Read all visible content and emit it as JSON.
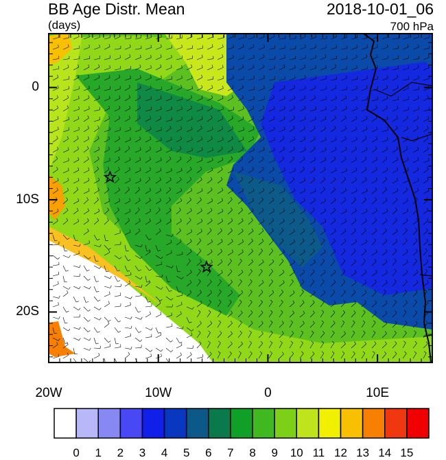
{
  "title": "BB Age Distr. Mean",
  "units": "(days)",
  "datetime": "2018-10-01_06",
  "level": "700 hPa",
  "x_ticks": [
    {
      "label": "20W",
      "lon": -20
    },
    {
      "label": "10W",
      "lon": -10
    },
    {
      "label": "0",
      "lon": 0
    },
    {
      "label": "10E",
      "lon": 10
    }
  ],
  "y_ticks": [
    {
      "label": "0",
      "lat": 0
    },
    {
      "label": "10S",
      "lat": -10
    },
    {
      "label": "20S",
      "lat": -20
    }
  ],
  "domain": {
    "lon_min": -20,
    "lon_max": 15,
    "lat_min": -24.5,
    "lat_max": 4.8
  },
  "markers": [
    {
      "name": "star",
      "lon": -14.4,
      "lat": -8.0
    },
    {
      "name": "star",
      "lon": -5.6,
      "lat": -16.0
    }
  ],
  "colorbar": {
    "labels": [
      "0",
      "1",
      "2",
      "3",
      "4",
      "5",
      "6",
      "7",
      "8",
      "9",
      "10",
      "11",
      "12",
      "13",
      "14",
      "15"
    ],
    "colors": [
      "#ffffff",
      "#b8b8f8",
      "#8888f4",
      "#4848f4",
      "#1020e8",
      "#0838c0",
      "#0c5888",
      "#0a7a4c",
      "#10a028",
      "#40b820",
      "#7cd018",
      "#c0e41c",
      "#f0f000",
      "#f8c000",
      "#f88000",
      "#f03810",
      "#f00000"
    ]
  }
}
